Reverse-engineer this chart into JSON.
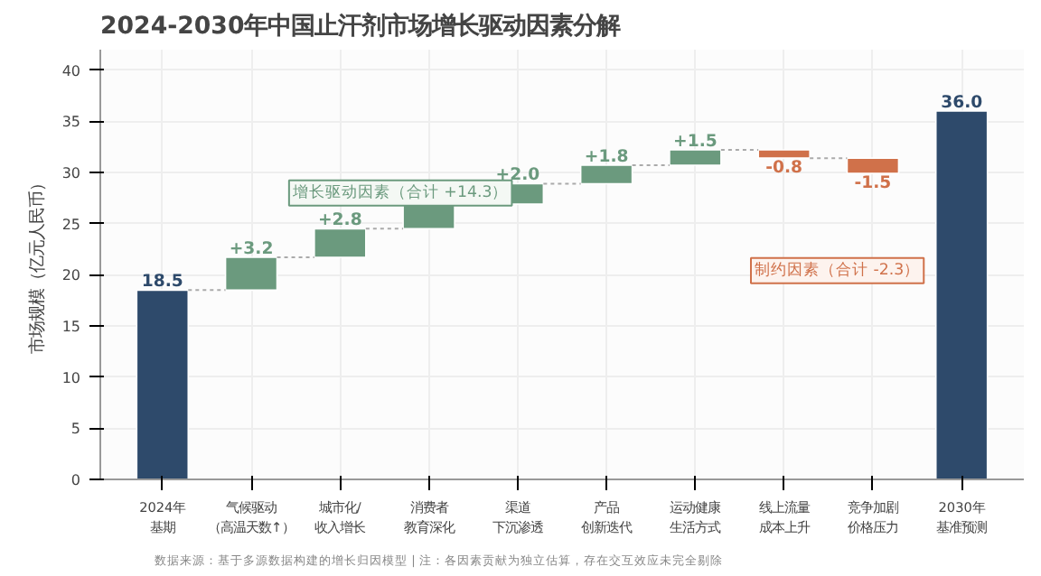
{
  "chart_data": {
    "type": "bar",
    "title": "2024-2030年中国止汗剂市场增长驱动因素分解",
    "ylabel": "市场规模（亿元人民币）",
    "categories": [
      "2024年基期",
      "气候驱动（高温天数↑）",
      "城市化/收入增长",
      "消费者教育深化",
      "渠道下沉渗透",
      "产品创新迭代",
      "运动健康生活方式",
      "线上流量成本上升",
      "竞争加剧价格压力",
      "2030年基准预测"
    ],
    "values": [
      18.5,
      3.2,
      2.8,
      2.4,
      2.0,
      1.8,
      1.5,
      -0.8,
      -1.5,
      36.0
    ],
    "base": [
      0,
      18.5,
      21.7,
      24.5,
      26.9,
      28.9,
      30.7,
      32.2,
      31.4,
      0
    ],
    "colors": [
      "#2e4a6b",
      "#6b9a7e",
      "#6b9a7e",
      "#6b9a7e",
      "#6b9a7e",
      "#6b9a7e",
      "#6b9a7e",
      "#d0714a",
      "#d0714a",
      "#2e4a6b"
    ],
    "value_labels": [
      "18.5",
      "+3.2",
      "+2.8",
      null,
      "+2.0",
      "+1.8",
      "+1.5",
      "-0.8",
      "-1.5",
      "36.0"
    ],
    "ylim": [
      0,
      42
    ],
    "yticks": [
      0,
      5,
      10,
      15,
      20,
      25,
      30,
      35,
      40
    ],
    "grid": true,
    "annotations": [
      "增长驱动因素（合计 +14.3）",
      "制约因素（合计 -2.3）",
      "数据来源：基于多源数据构建的增长归因模型 | 注：各因素贡献为独立估算，存在交互效应未完全剔除"
    ]
  }
}
